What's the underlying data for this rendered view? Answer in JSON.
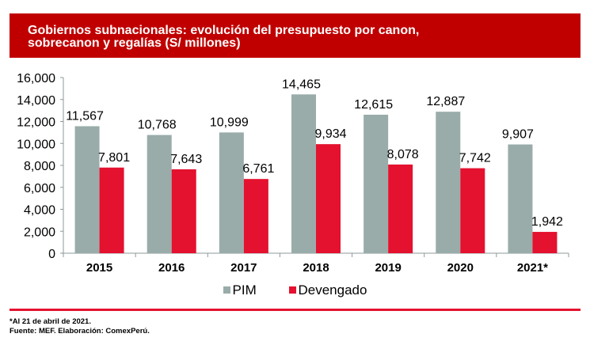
{
  "title": "Gobiernos subnacionales: evolución del presupuesto por canon, sobrecanon y regalías (S/ millones)",
  "title_line1": "Gobiernos subnacionales: evolución del presupuesto por canon,",
  "title_line2": "sobrecanon y regalías (S/ millones)",
  "colors": {
    "title_bg": "#c00000",
    "pim": "#99aca9",
    "devengado": "#e4112f",
    "divider": "#e4112f"
  },
  "chart_data": {
    "type": "bar",
    "title": "Gobiernos subnacionales: evolución del presupuesto por canon, sobrecanon y regalías (S/ millones)",
    "xlabel": "",
    "ylabel": "",
    "categories": [
      "2015",
      "2016",
      "2017",
      "2018",
      "2019",
      "2020",
      "2021*"
    ],
    "series": [
      {
        "name": "PIM",
        "color": "#99aca9",
        "values": [
          11567,
          10768,
          10999,
          14465,
          12615,
          12887,
          9907
        ],
        "labels": [
          "11,567",
          "10,768",
          "10,999",
          "14,465",
          "12,615",
          "12,887",
          "9,907"
        ]
      },
      {
        "name": "Devengado",
        "color": "#e4112f",
        "values": [
          7801,
          7643,
          6761,
          9934,
          8078,
          7742,
          1942
        ],
        "labels": [
          "7,801",
          "7,643",
          "6,761",
          "9,934",
          "8,078",
          "7,742",
          "1,942"
        ]
      }
    ],
    "ylim": [
      0,
      16000
    ],
    "yticks": [
      0,
      2000,
      4000,
      6000,
      8000,
      10000,
      12000,
      14000,
      16000
    ],
    "ytick_labels": [
      "0",
      "2,000",
      "4,000",
      "6,000",
      "8,000",
      "10,000",
      "12,000",
      "14,000",
      "16,000"
    ],
    "grid": false,
    "legend_position": "bottom-center"
  },
  "legend": [
    {
      "label": "PIM"
    },
    {
      "label": "Devengado"
    }
  ],
  "footnotes": {
    "note": "*Al 21 de abril de 2021.",
    "source": "Fuente: MEF. Elaboración: ComexPerú."
  }
}
